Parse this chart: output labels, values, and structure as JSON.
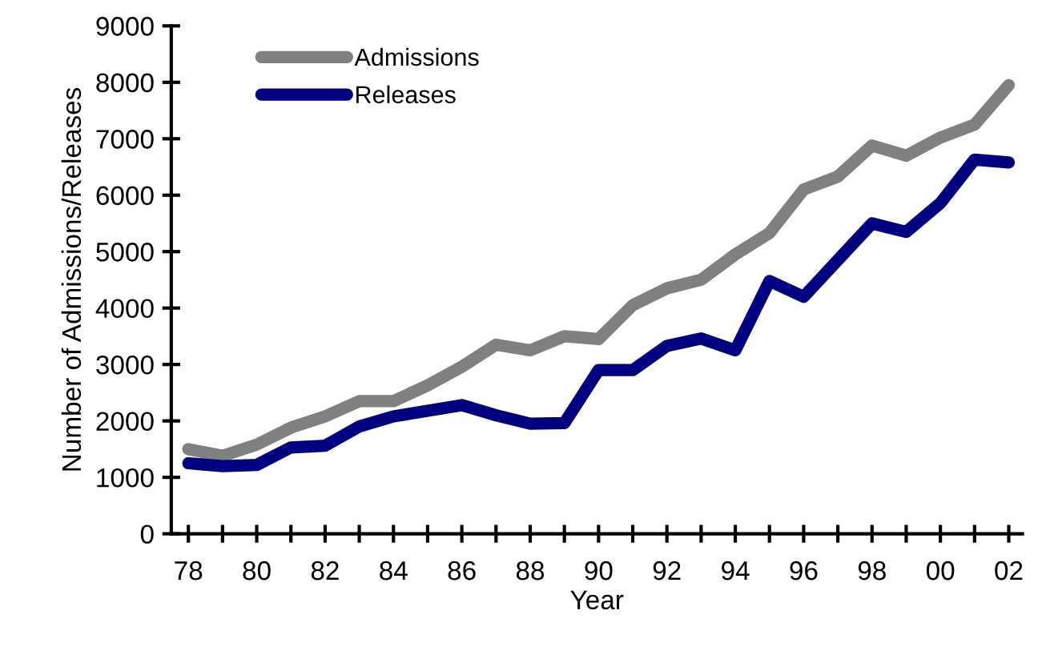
{
  "chart_data": {
    "type": "line",
    "xlabel": "Year",
    "ylabel": "Number of Admissions/Releases",
    "x": [
      1978,
      1979,
      1980,
      1981,
      1982,
      1983,
      1984,
      1985,
      1986,
      1987,
      1988,
      1989,
      1990,
      1991,
      1992,
      1993,
      1994,
      1995,
      1996,
      1997,
      1998,
      1999,
      2000,
      2001,
      2002
    ],
    "series": [
      {
        "name": "Admissions",
        "color": "#808080",
        "values": [
          1500,
          1380,
          1580,
          1880,
          2080,
          2350,
          2350,
          2630,
          2960,
          3350,
          3250,
          3500,
          3450,
          4050,
          4350,
          4500,
          4950,
          5330,
          6100,
          6330,
          6880,
          6700,
          7020,
          7250,
          7950
        ]
      },
      {
        "name": "Releases",
        "color": "#000080",
        "values": [
          1250,
          1200,
          1220,
          1530,
          1560,
          1900,
          2080,
          2180,
          2280,
          2100,
          1950,
          1960,
          2900,
          2900,
          3330,
          3460,
          3250,
          4480,
          4200,
          4850,
          5500,
          5350,
          5860,
          6630,
          6580
        ]
      }
    ],
    "xlim": [
      1977.5,
      2002.4
    ],
    "xticks": [
      {
        "value": 1978,
        "label": "78"
      },
      {
        "value": 1979,
        "label": null
      },
      {
        "value": 1980,
        "label": "80"
      },
      {
        "value": 1981,
        "label": null
      },
      {
        "value": 1982,
        "label": "82"
      },
      {
        "value": 1983,
        "label": null
      },
      {
        "value": 1984,
        "label": "84"
      },
      {
        "value": 1985,
        "label": null
      },
      {
        "value": 1986,
        "label": "86"
      },
      {
        "value": 1987,
        "label": null
      },
      {
        "value": 1988,
        "label": "88"
      },
      {
        "value": 1989,
        "label": null
      },
      {
        "value": 1990,
        "label": "90"
      },
      {
        "value": 1991,
        "label": null
      },
      {
        "value": 1992,
        "label": "92"
      },
      {
        "value": 1993,
        "label": null
      },
      {
        "value": 1994,
        "label": "94"
      },
      {
        "value": 1995,
        "label": null
      },
      {
        "value": 1996,
        "label": "96"
      },
      {
        "value": 1997,
        "label": null
      },
      {
        "value": 1998,
        "label": "98"
      },
      {
        "value": 1999,
        "label": null
      },
      {
        "value": 2000,
        "label": "00"
      },
      {
        "value": 2001,
        "label": null
      },
      {
        "value": 2002,
        "label": "02"
      }
    ],
    "ylim": [
      0,
      9000
    ],
    "yticks": [
      0,
      1000,
      2000,
      3000,
      4000,
      5000,
      6000,
      7000,
      8000,
      9000
    ],
    "grid": false,
    "legend": "top left",
    "marker": "none",
    "line_style": "solid"
  }
}
